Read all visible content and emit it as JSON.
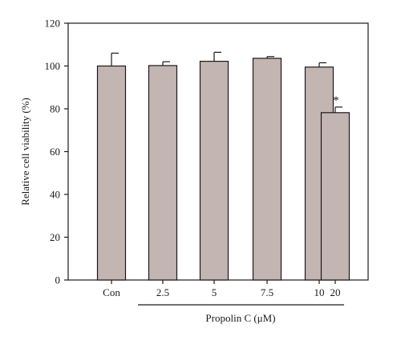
{
  "chart_data": {
    "type": "bar",
    "categories": [
      "Con",
      "2.5",
      "5",
      "7.5",
      "10",
      "20"
    ],
    "values": [
      100,
      100.2,
      102.2,
      103.6,
      99.5,
      78.2
    ],
    "errors": [
      6,
      1.8,
      4.2,
      0.8,
      2.0,
      2.6
    ],
    "annotations": [
      {
        "category": "20",
        "text": "*"
      }
    ],
    "ylabel": "Relative cell viability (%)",
    "xlabel": "Propolin C (μM)",
    "ylim": [
      0,
      120
    ],
    "yticks": [
      0,
      20,
      40,
      60,
      80,
      100,
      120
    ],
    "grid": false,
    "bar_color": "#c3b5b1",
    "edge_color": "#1a1a1a",
    "legend": "none"
  }
}
